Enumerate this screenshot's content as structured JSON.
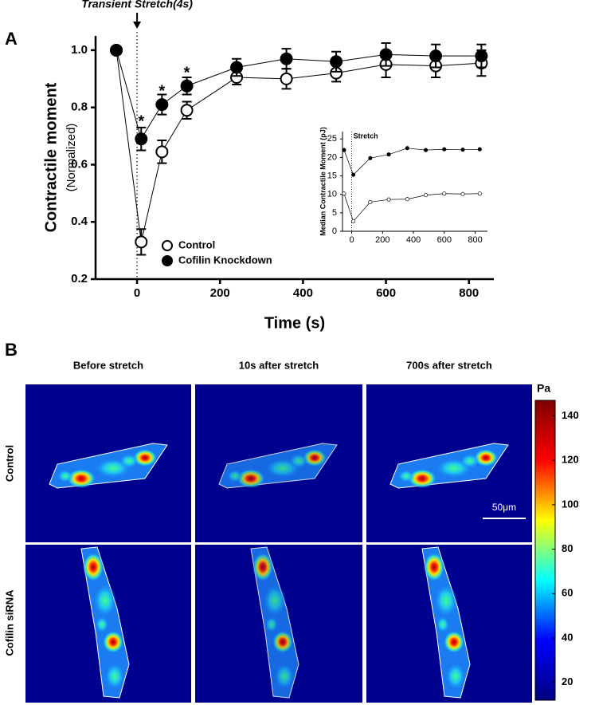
{
  "figure": {
    "panel_labels": [
      "A",
      "B"
    ],
    "column_titles": [
      "Before stretch",
      "10s after stretch",
      "700s after stretch"
    ],
    "row_labels": [
      "Control",
      "Cofilin siRNA"
    ],
    "scale_bar": "50μm"
  },
  "chart_data": [
    {
      "type": "line",
      "xlabel": "Time (s)",
      "ylabel": "Contractile moment",
      "ylabel_note": "(Normalized)",
      "x": [
        -50,
        10,
        60,
        120,
        240,
        360,
        480,
        600,
        720,
        830
      ],
      "series": [
        {
          "name": "Control",
          "color": "#000000",
          "face_color": "#ffffff",
          "values": [
            1.0,
            0.33,
            0.645,
            0.79,
            0.905,
            0.9,
            0.92,
            0.95,
            0.945,
            0.955
          ],
          "errors": [
            0.0,
            0.045,
            0.04,
            0.03,
            0.025,
            0.035,
            0.03,
            0.045,
            0.04,
            0.045
          ]
        },
        {
          "name": "Cofilin Knockdown",
          "color": "#000000",
          "face_color": "#000000",
          "values": [
            1.0,
            0.69,
            0.81,
            0.875,
            0.94,
            0.97,
            0.96,
            0.985,
            0.98,
            0.98
          ],
          "errors": [
            0.0,
            0.04,
            0.035,
            0.03,
            0.03,
            0.035,
            0.035,
            0.04,
            0.04,
            0.04
          ]
        }
      ],
      "xlim": [
        -100,
        860
      ],
      "xticks": [
        0,
        200,
        400,
        600,
        800
      ],
      "ylim": [
        0.2,
        1.05
      ],
      "yticks": [
        {
          "value": 1,
          "label": "1.0"
        },
        0.8,
        0.6,
        0.4,
        0.2
      ],
      "legend": "lower left",
      "event": {
        "text": "Transient Stretch(4s)",
        "x": 0
      },
      "annotations": [
        {
          "text": "*",
          "x": 10,
          "y": 0.76
        },
        {
          "text": "*",
          "x": 60,
          "y": 0.865
        },
        {
          "text": "*",
          "x": 120,
          "y": 0.93
        }
      ]
    },
    {
      "type": "line",
      "ylabel": "Median Contractile Moment (pJ)",
      "x": [
        -50,
        10,
        120,
        240,
        360,
        480,
        600,
        720,
        830
      ],
      "series": [
        {
          "color": "#000000",
          "face_color": "#000000",
          "values": [
            22,
            15.3,
            19.8,
            20.8,
            22.5,
            22,
            22.2,
            22.1,
            22.2
          ]
        },
        {
          "color": "#000000",
          "face_color": "#ffffff",
          "values": [
            10.2,
            2.7,
            7.9,
            8.6,
            8.7,
            9.8,
            10.2,
            10.1,
            10.2
          ]
        }
      ],
      "xlim": [
        -60,
        880
      ],
      "xticks": [
        0,
        200,
        400,
        600,
        800
      ],
      "ylim": [
        0,
        27
      ],
      "yticks": [
        0,
        5,
        10,
        15,
        20,
        25
      ],
      "event": {
        "text": "Stretch",
        "x": 0
      }
    },
    {
      "type": "colorbar",
      "title": "Pa",
      "ylim": [
        12,
        147
      ],
      "yticks": [
        20,
        40,
        60,
        80,
        100,
        120,
        140
      ],
      "colors": [
        "#00007f",
        "#0000ff",
        "#00ffff",
        "#ffff00",
        "#ff0000",
        "#7f0000"
      ]
    }
  ]
}
